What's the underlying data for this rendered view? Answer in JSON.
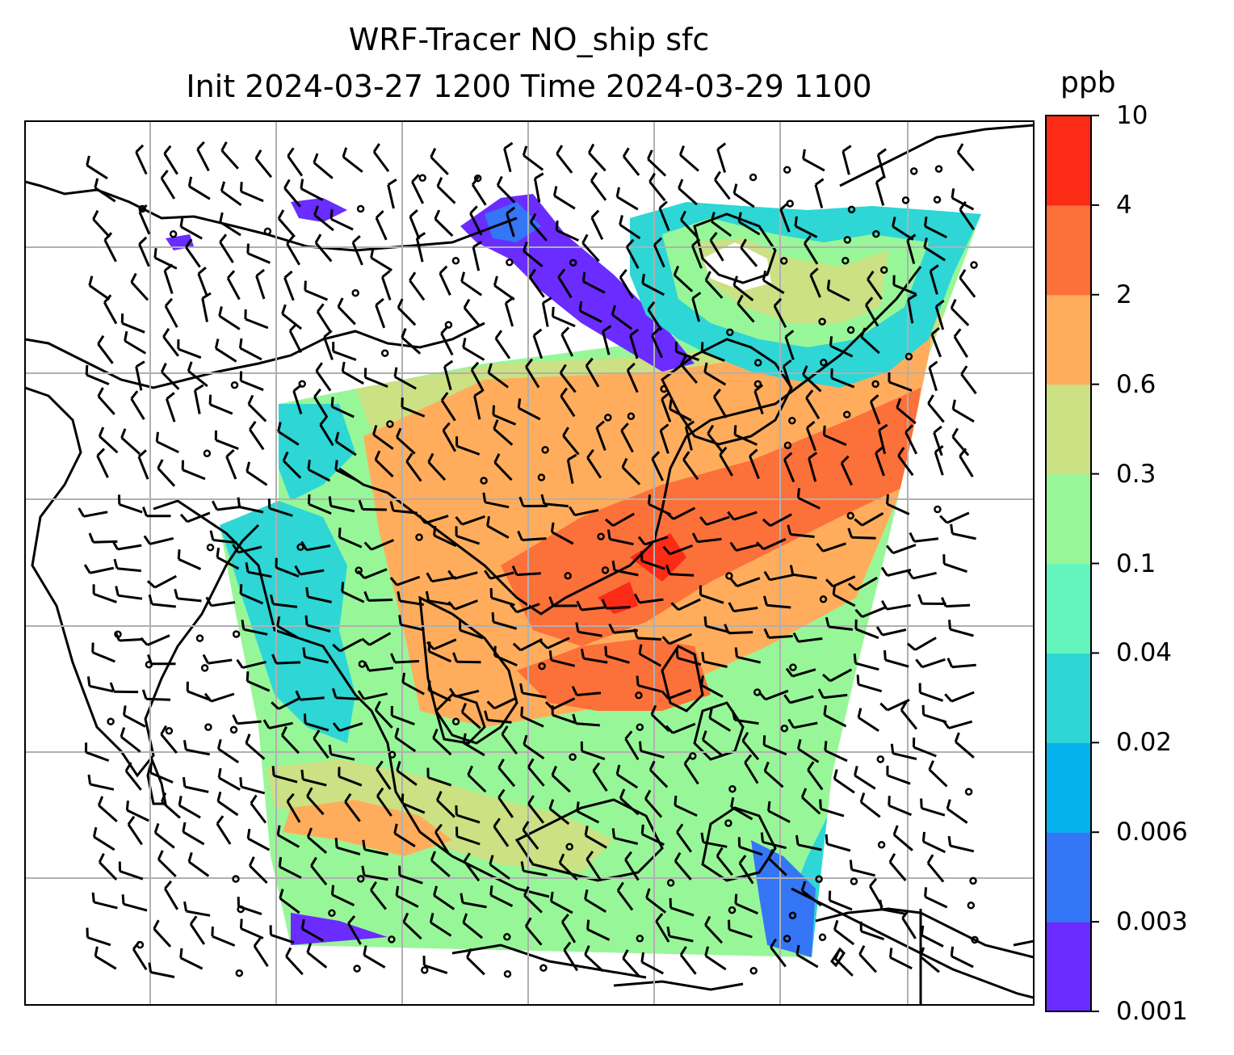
{
  "title": {
    "line1": "WRF-Tracer NO_ship sfc",
    "line2": "Init 2024-03-27 1200 Time 2024-03-29 1100"
  },
  "colorbar": {
    "units": "ppb",
    "ticks": [
      "0.001",
      "0.003",
      "0.006",
      "0.02",
      "0.04",
      "0.1",
      "0.3",
      "0.6",
      "2",
      "4",
      "10"
    ],
    "colors": [
      "#6a2cff",
      "#3476f5",
      "#06b2ec",
      "#2ed6d6",
      "#64f5bd",
      "#97f798",
      "#cce084",
      "#ffad5c",
      "#fc703a",
      "#fb2b16"
    ]
  },
  "map": {
    "grid": "on",
    "field_levels": {
      "background": "#97f798",
      "north_band": "#cce084",
      "inland_warm": "#ffad5c",
      "corridor": "#fc703a",
      "hotspot": "#fb2b16",
      "west_coast": "#2ed6d6",
      "edges": "#64f5bd",
      "plume": "#6a2cff",
      "ocean_plume": "#3476f5"
    },
    "overlays": [
      "coastline",
      "wind-barbs",
      "calm-circles"
    ]
  }
}
